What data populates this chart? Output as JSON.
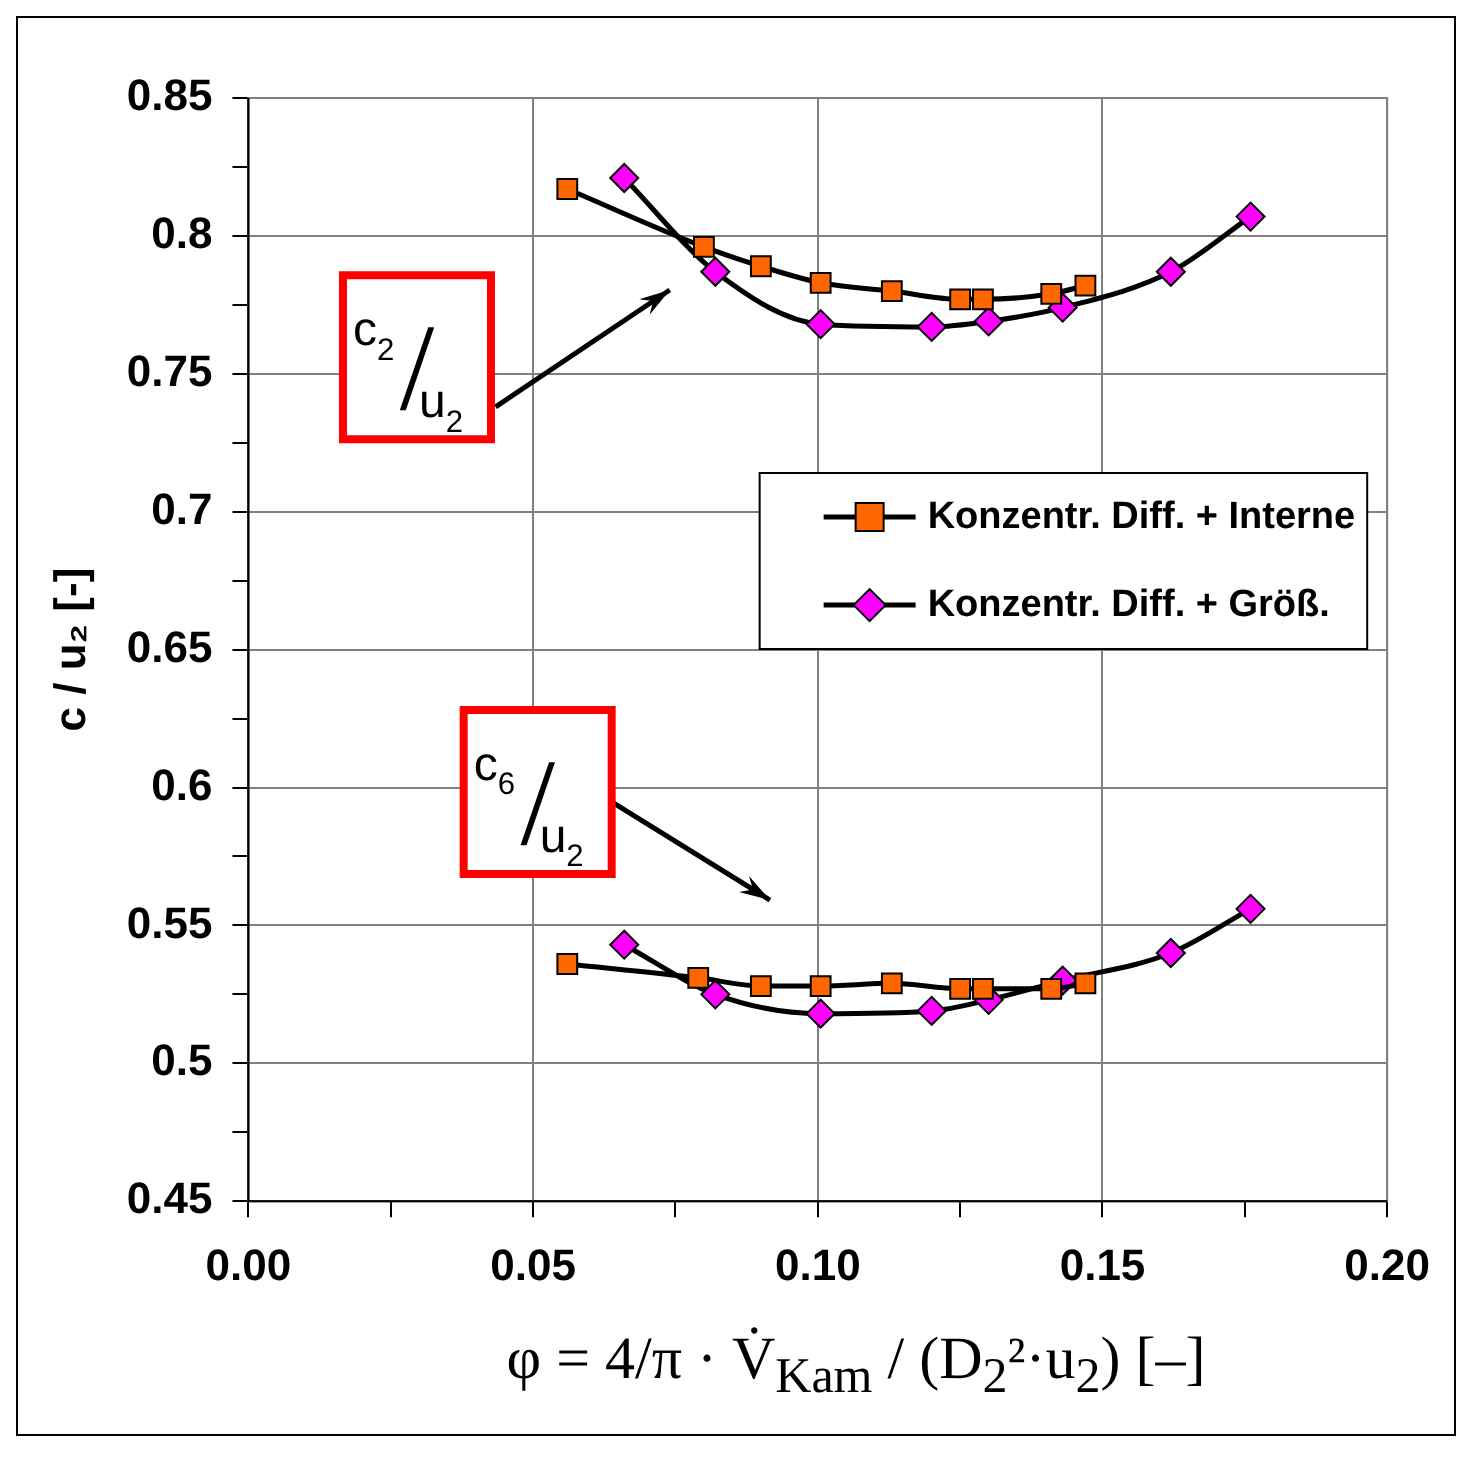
{
  "chart_data": {
    "type": "line",
    "xlabel": "φ = 4/π · V̇$_{Kam}$ / (D$_{2}$²·u$_{2}$) [–]",
    "ylabel": "c / u₂ [-]",
    "xlim": [
      0,
      0.2
    ],
    "ylim": [
      0.45,
      0.85
    ],
    "xticks": [
      {
        "value": 0,
        "label": "0.00"
      },
      {
        "value": 0.025,
        "label": null
      },
      {
        "value": 0.05,
        "label": "0.05"
      },
      {
        "value": 0.075,
        "label": null
      },
      {
        "value": 0.1,
        "label": "0.10"
      },
      {
        "value": 0.125,
        "label": null
      },
      {
        "value": 0.15,
        "label": "0.15"
      },
      {
        "value": 0.175,
        "label": null
      },
      {
        "value": 0.2,
        "label": "0.20"
      }
    ],
    "yticks": [
      0.45,
      {
        "value": 0.475,
        "label": null
      },
      0.5,
      {
        "value": 0.525,
        "label": null
      },
      0.55,
      {
        "value": 0.575,
        "label": null
      },
      0.6,
      {
        "value": 0.625,
        "label": null
      },
      0.65,
      {
        "value": 0.675,
        "label": null
      },
      0.7,
      {
        "value": 0.725,
        "label": null
      },
      0.75,
      {
        "value": 0.775,
        "label": null
      },
      0.8,
      {
        "value": 0.825,
        "label": null
      },
      0.85
    ],
    "grid": true,
    "legend": "right",
    "line_style": "solid",
    "series": [
      {
        "name": "Konzentr. Diff. + Interne",
        "color": "#ff6600",
        "marker": "square",
        "x": [
          0.056,
          0.08,
          0.09,
          0.1005,
          0.113,
          0.125,
          0.129,
          0.141,
          0.147
        ],
        "values": [
          0.817,
          0.796,
          0.789,
          0.783,
          0.78,
          0.777,
          0.777,
          0.779,
          0.782
        ]
      },
      {
        "name": "Konzentr. Diff. + Größ.",
        "color": "#ff00ff",
        "marker": "diamond",
        "x": [
          0.066,
          0.082,
          0.1005,
          0.12,
          0.13,
          0.143,
          0.162,
          0.176
        ],
        "values": [
          0.821,
          0.787,
          0.768,
          0.767,
          0.769,
          0.774,
          0.787,
          0.807
        ]
      },
      {
        "color": "#ff6600",
        "marker": "square",
        "x": [
          0.056,
          0.079,
          0.09,
          0.1005,
          0.113,
          0.125,
          0.129,
          0.141,
          0.147
        ],
        "values": [
          0.536,
          0.531,
          0.528,
          0.528,
          0.529,
          0.527,
          0.527,
          0.527,
          0.529
        ]
      },
      {
        "color": "#ff00ff",
        "marker": "diamond",
        "x": [
          0.066,
          0.082,
          0.1005,
          0.12,
          0.13,
          0.143,
          0.162,
          0.176
        ],
        "values": [
          0.543,
          0.525,
          0.518,
          0.519,
          0.523,
          0.53,
          0.54,
          0.556
        ]
      }
    ],
    "annotations": [
      "c$_{2}$/u$_{2}$",
      "c$_{6}$/u$_{2}$"
    ]
  }
}
